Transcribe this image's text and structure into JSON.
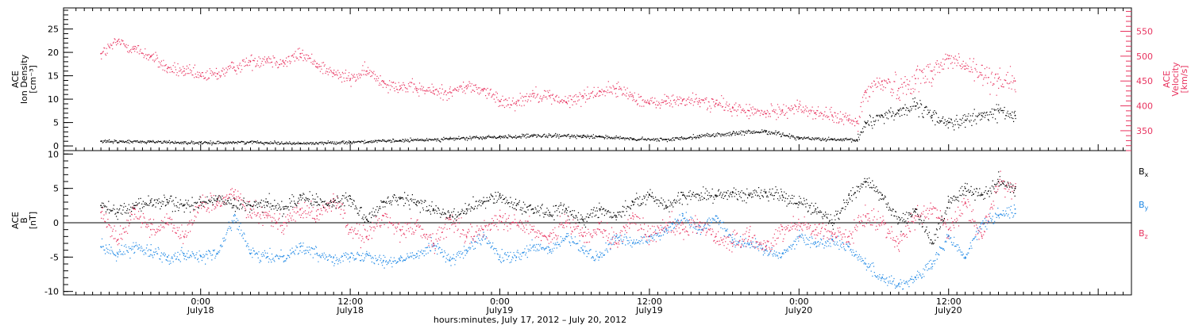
{
  "chart_data": [
    {
      "type": "scatter",
      "panel": "top",
      "left_axis": {
        "label_lines": [
          "ACE",
          "Ion Density"
        ],
        "unit": "[cm⁻³]",
        "range": [
          -1,
          29.5
        ],
        "ticks": [
          0,
          5,
          10,
          15,
          20,
          25
        ],
        "tick_labels": [
          "0",
          "5",
          "10",
          "15",
          "20",
          "25"
        ]
      },
      "right_axis": {
        "label_lines": [
          "ACE",
          "Velocity"
        ],
        "unit": "[km/s]",
        "range": [
          310,
          597
        ],
        "ticks": [
          350,
          400,
          450,
          500,
          550
        ],
        "tick_labels": [
          "350",
          "400",
          "450",
          "500",
          "550"
        ]
      },
      "series": [
        {
          "axis": "left",
          "color": "#000000",
          "x": [
            -12,
            -6,
            0,
            6,
            12,
            18,
            24,
            30,
            36,
            40,
            46,
            48,
            52,
            56,
            60,
            64,
            68,
            72,
            76,
            79,
            80,
            82,
            84,
            86,
            88,
            90,
            92,
            94,
            96,
            98
          ],
          "y": [
            1.0,
            1.0,
            0.7,
            0.9,
            0.6,
            0.9,
            1.2,
            1.6,
            2.0,
            2.2,
            2.2,
            2.1,
            1.5,
            1.4,
            2.2,
            2.7,
            3.2,
            1.8,
            1.4,
            1.3,
            5.0,
            6.5,
            7.5,
            8.5,
            6.5,
            5.0,
            5.5,
            6.5,
            7.5,
            6.5
          ]
        },
        {
          "axis": "right",
          "color": "#e8335f",
          "x": [
            -12,
            -10,
            -8,
            -6,
            -4,
            -2,
            0,
            2,
            4,
            6,
            8,
            10,
            12,
            14,
            16,
            18,
            20,
            22,
            24,
            26,
            28,
            30,
            32,
            34,
            36,
            38,
            40,
            42,
            44,
            46,
            48,
            50,
            52,
            54,
            56,
            58,
            60,
            62,
            64,
            66,
            68,
            70,
            72,
            74,
            76,
            78,
            79,
            80,
            82,
            84,
            86,
            88,
            90,
            92,
            94,
            96,
            98
          ],
          "y": [
            505,
            530,
            515,
            500,
            475,
            470,
            460,
            465,
            478,
            490,
            495,
            488,
            505,
            485,
            465,
            455,
            470,
            448,
            440,
            435,
            430,
            428,
            440,
            432,
            410,
            408,
            425,
            420,
            408,
            420,
            430,
            435,
            420,
            405,
            410,
            412,
            410,
            405,
            396,
            390,
            385,
            392,
            398,
            386,
            380,
            372,
            365,
            430,
            450,
            435,
            455,
            470,
            495,
            480,
            462,
            455,
            450
          ]
        }
      ]
    },
    {
      "type": "scatter",
      "panel": "bottom",
      "left_axis": {
        "label_lines": [
          "ACE",
          "B"
        ],
        "unit": "[nT]",
        "range": [
          -10.5,
          10.5
        ],
        "ticks": [
          -10,
          -5,
          0,
          5,
          10
        ],
        "tick_labels": [
          "-10",
          "-5",
          "0",
          "5",
          "10"
        ]
      },
      "zero_line": true,
      "series": [
        {
          "name": "Bx",
          "legend_base": "B",
          "legend_sub": "x",
          "color": "#000000",
          "x": [
            -12,
            -10,
            -8,
            -6,
            -4,
            -2,
            0,
            2,
            4,
            6,
            8,
            10,
            12,
            14,
            16,
            18,
            20,
            22,
            24,
            26,
            28,
            30,
            32,
            34,
            36,
            38,
            40,
            42,
            44,
            46,
            48,
            50,
            52,
            54,
            56,
            58,
            60,
            62,
            64,
            66,
            68,
            70,
            72,
            74,
            76,
            78,
            80,
            82,
            84,
            86,
            88,
            90,
            92,
            94,
            96,
            98
          ],
          "y": [
            2.5,
            1.5,
            2.5,
            3.0,
            3.0,
            2.5,
            3.0,
            3.5,
            2.5,
            2.5,
            3.0,
            2.0,
            4.0,
            3.0,
            3.0,
            3.5,
            0.5,
            3.0,
            3.5,
            3.0,
            2.0,
            1.0,
            2.0,
            3.0,
            4.0,
            2.5,
            2.0,
            1.5,
            2.0,
            0.5,
            2.0,
            1.0,
            3.0,
            4.0,
            2.5,
            4.0,
            4.0,
            4.0,
            4.5,
            4.0,
            4.5,
            4.0,
            3.0,
            2.0,
            0.0,
            4.0,
            6.0,
            4.0,
            0.0,
            2.0,
            -3.0,
            3.0,
            5.0,
            4.0,
            6.0,
            5.0
          ]
        },
        {
          "name": "By",
          "legend_base": "B",
          "legend_sub": "y",
          "color": "#1e88e5",
          "x": [
            -12,
            -10,
            -8,
            -6,
            -4,
            -2,
            0,
            2,
            4,
            6,
            8,
            10,
            12,
            14,
            16,
            18,
            20,
            22,
            24,
            26,
            28,
            30,
            32,
            34,
            36,
            38,
            40,
            42,
            44,
            46,
            48,
            50,
            52,
            54,
            56,
            58,
            60,
            62,
            64,
            66,
            68,
            70,
            72,
            74,
            76,
            78,
            80,
            82,
            84,
            86,
            88,
            90,
            92,
            94,
            96,
            98
          ],
          "y": [
            -3.5,
            -4.5,
            -3.5,
            -4.0,
            -5.0,
            -4.5,
            -4.8,
            -4.5,
            1.0,
            -4.5,
            -5.0,
            -4.8,
            -3.5,
            -4.5,
            -5.0,
            -5.0,
            -4.5,
            -5.5,
            -5.5,
            -4.5,
            -3.0,
            -5.5,
            -4.0,
            -2.0,
            -5.0,
            -5.0,
            -3.5,
            -4.0,
            -2.0,
            -4.0,
            -5.0,
            -2.0,
            -3.0,
            -2.0,
            -1.0,
            1.0,
            -1.0,
            1.0,
            -2.5,
            -3.0,
            -4.0,
            -4.5,
            -2.0,
            -3.0,
            -2.5,
            -3.5,
            -6.0,
            -8.0,
            -9.0,
            -8.0,
            -6.0,
            -2.0,
            -5.0,
            0.0,
            1.0,
            2.0
          ]
        },
        {
          "name": "Bz",
          "legend_base": "B",
          "legend_sub": "z",
          "color": "#e8335f",
          "x": [
            -12,
            -10,
            -8,
            -6,
            -4,
            -2,
            0,
            2,
            4,
            6,
            8,
            10,
            12,
            14,
            16,
            18,
            20,
            22,
            24,
            26,
            28,
            30,
            32,
            34,
            36,
            38,
            40,
            42,
            44,
            46,
            48,
            50,
            52,
            54,
            56,
            58,
            60,
            62,
            64,
            66,
            68,
            70,
            72,
            74,
            76,
            78,
            80,
            82,
            84,
            86,
            88,
            90,
            92,
            94,
            96,
            98
          ],
          "y": [
            1.5,
            -2.5,
            2.0,
            -1.0,
            0.0,
            -2.0,
            3.0,
            2.5,
            4.5,
            2.0,
            1.0,
            0.0,
            2.0,
            1.0,
            3.5,
            -1.0,
            -2.0,
            1.0,
            -1.0,
            -0.5,
            -3.0,
            0.5,
            -2.0,
            -1.0,
            1.0,
            0.0,
            -1.0,
            -2.0,
            0.0,
            -2.0,
            -1.0,
            -3.0,
            1.0,
            -2.0,
            0.0,
            -1.0,
            0.0,
            -2.0,
            -3.0,
            -2.0,
            -3.5,
            -1.0,
            0.0,
            -1.0,
            -1.5,
            -2.0,
            1.0,
            0.0,
            -3.0,
            1.0,
            2.0,
            -1.0,
            3.0,
            -2.0,
            6.0,
            5.0
          ]
        }
      ]
    }
  ],
  "x_axis": {
    "range": [
      -16.5,
      112
    ],
    "major_ticks": [
      0,
      18,
      36,
      54,
      72,
      90
    ],
    "tick_labels": [
      {
        "time": "0:00",
        "date": "July18"
      },
      {
        "time": "12:00",
        "date": "July18"
      },
      {
        "time": "0:00",
        "date": "July19"
      },
      {
        "time": "12:00",
        "date": "July19"
      },
      {
        "time": "0:00",
        "date": "July20"
      },
      {
        "time": "12:00",
        "date": "July20"
      }
    ],
    "caption": "hours:minutes, July 17, 2012 – July 20, 2012"
  }
}
